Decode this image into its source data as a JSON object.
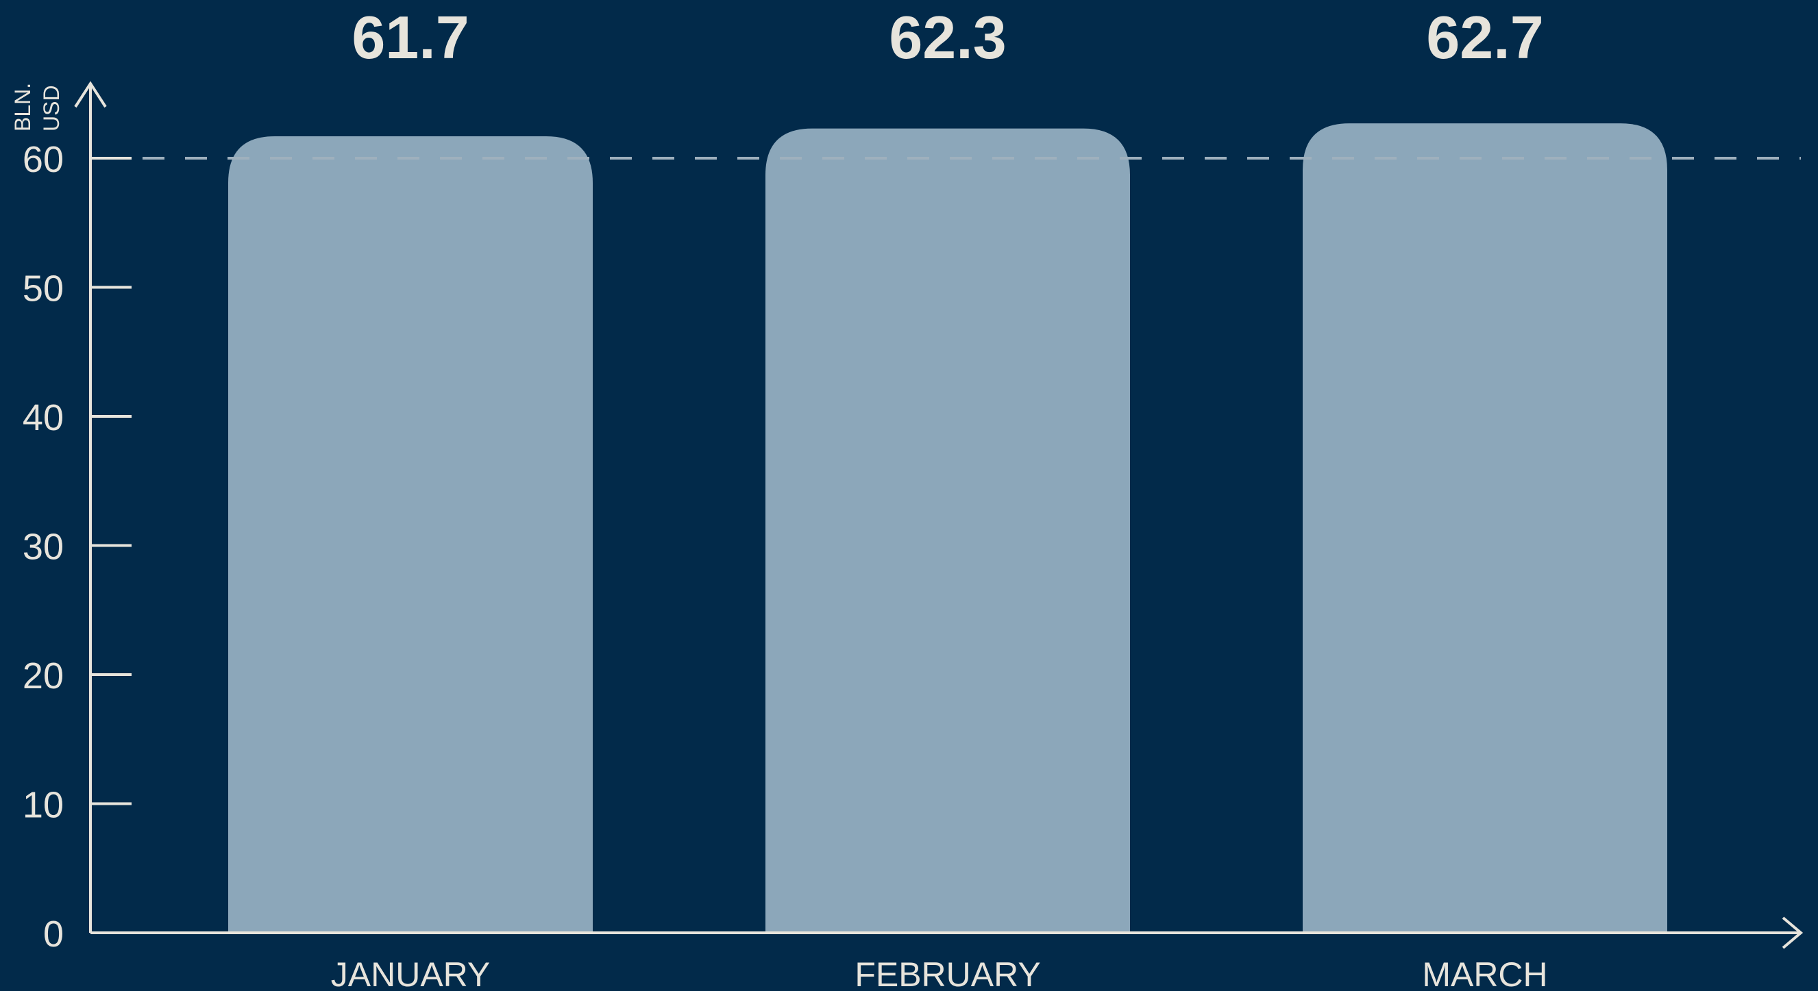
{
  "colors": {
    "background": "#022a4a",
    "bar": "#8ca7ba",
    "axis": "#e7e4dc",
    "text": "#e7e4dc",
    "reference_line": "#9fb0bd"
  },
  "chart_data": {
    "type": "bar",
    "categories": [
      "JANUARY",
      "FEBRUARY",
      "MARCH"
    ],
    "values": [
      61.7,
      62.3,
      62.7
    ],
    "value_labels": [
      "61.7",
      "62.3",
      "62.7"
    ],
    "ylabel_lines": [
      "BLN.",
      "USD"
    ],
    "xlabel": "",
    "ylim": [
      0,
      65
    ],
    "yticks": [
      0,
      10,
      20,
      30,
      40,
      50,
      60
    ],
    "reference_line": 60,
    "grid": false,
    "legend": "none"
  }
}
